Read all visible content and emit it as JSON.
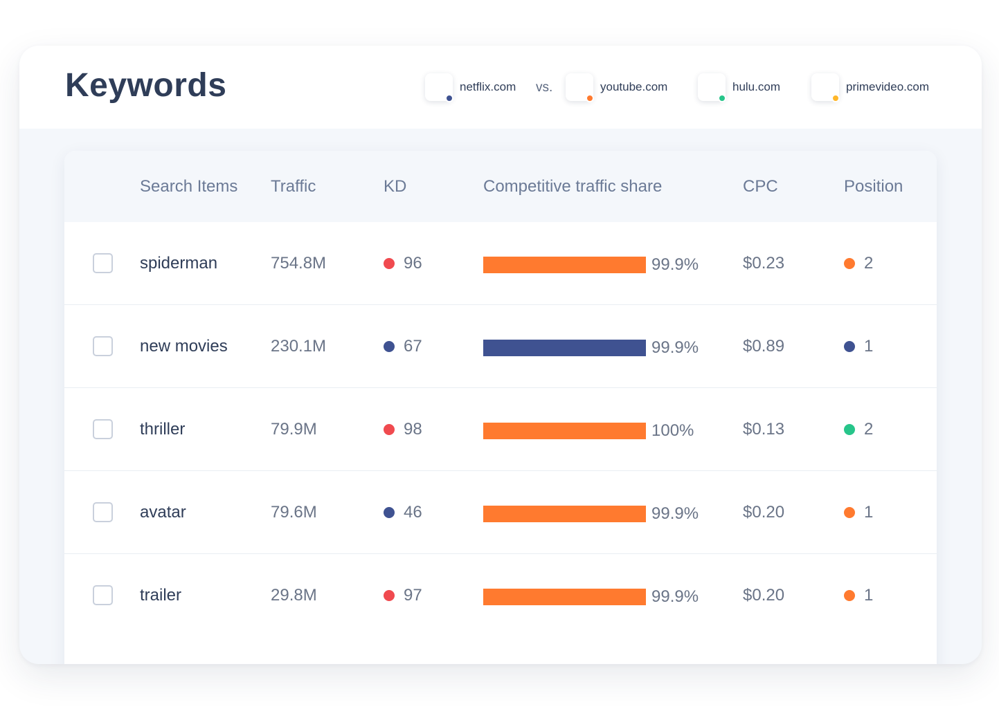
{
  "header": {
    "title": "Keywords",
    "vs_label": "vs.",
    "domains": [
      {
        "label": "netflix.com",
        "color": "#3f5291"
      },
      {
        "label": "youtube.com",
        "color": "#ff7a2f"
      },
      {
        "label": "hulu.com",
        "color": "#27c58a"
      },
      {
        "label": "primevideo.com",
        "color": "#ffb72a"
      }
    ]
  },
  "table": {
    "columns": [
      "Search Items",
      "Traffic",
      "KD",
      "Competitive traffic share",
      "CPC",
      "Position"
    ],
    "rows": [
      {
        "keyword": "spiderman",
        "traffic": "754.8M",
        "kd": "96",
        "kd_color": "#f04a4f",
        "share": "99.9%",
        "share_value": 99.9,
        "share_color": "#ff7a2f",
        "cpc": "$0.23",
        "position": "2",
        "position_color": "#ff7a2f"
      },
      {
        "keyword": "new movies",
        "traffic": "230.1M",
        "kd": "67",
        "kd_color": "#3f5291",
        "share": "99.9%",
        "share_value": 99.9,
        "share_color": "#3f5291",
        "cpc": "$0.89",
        "position": "1",
        "position_color": "#3f5291"
      },
      {
        "keyword": "thriller",
        "traffic": "79.9M",
        "kd": "98",
        "kd_color": "#f04a4f",
        "share": "100%",
        "share_value": 100,
        "share_color": "#ff7a2f",
        "cpc": "$0.13",
        "position": "2",
        "position_color": "#27c58a"
      },
      {
        "keyword": "avatar",
        "traffic": "79.6M",
        "kd": "46",
        "kd_color": "#3f5291",
        "share": "99.9%",
        "share_value": 99.9,
        "share_color": "#ff7a2f",
        "cpc": "$0.20",
        "position": "1",
        "position_color": "#ff7a2f"
      },
      {
        "keyword": "trailer",
        "traffic": "29.8M",
        "kd": "97",
        "kd_color": "#f04a4f",
        "share": "99.9%",
        "share_value": 99.9,
        "share_color": "#ff7a2f",
        "cpc": "$0.20",
        "position": "1",
        "position_color": "#ff7a2f"
      }
    ]
  }
}
